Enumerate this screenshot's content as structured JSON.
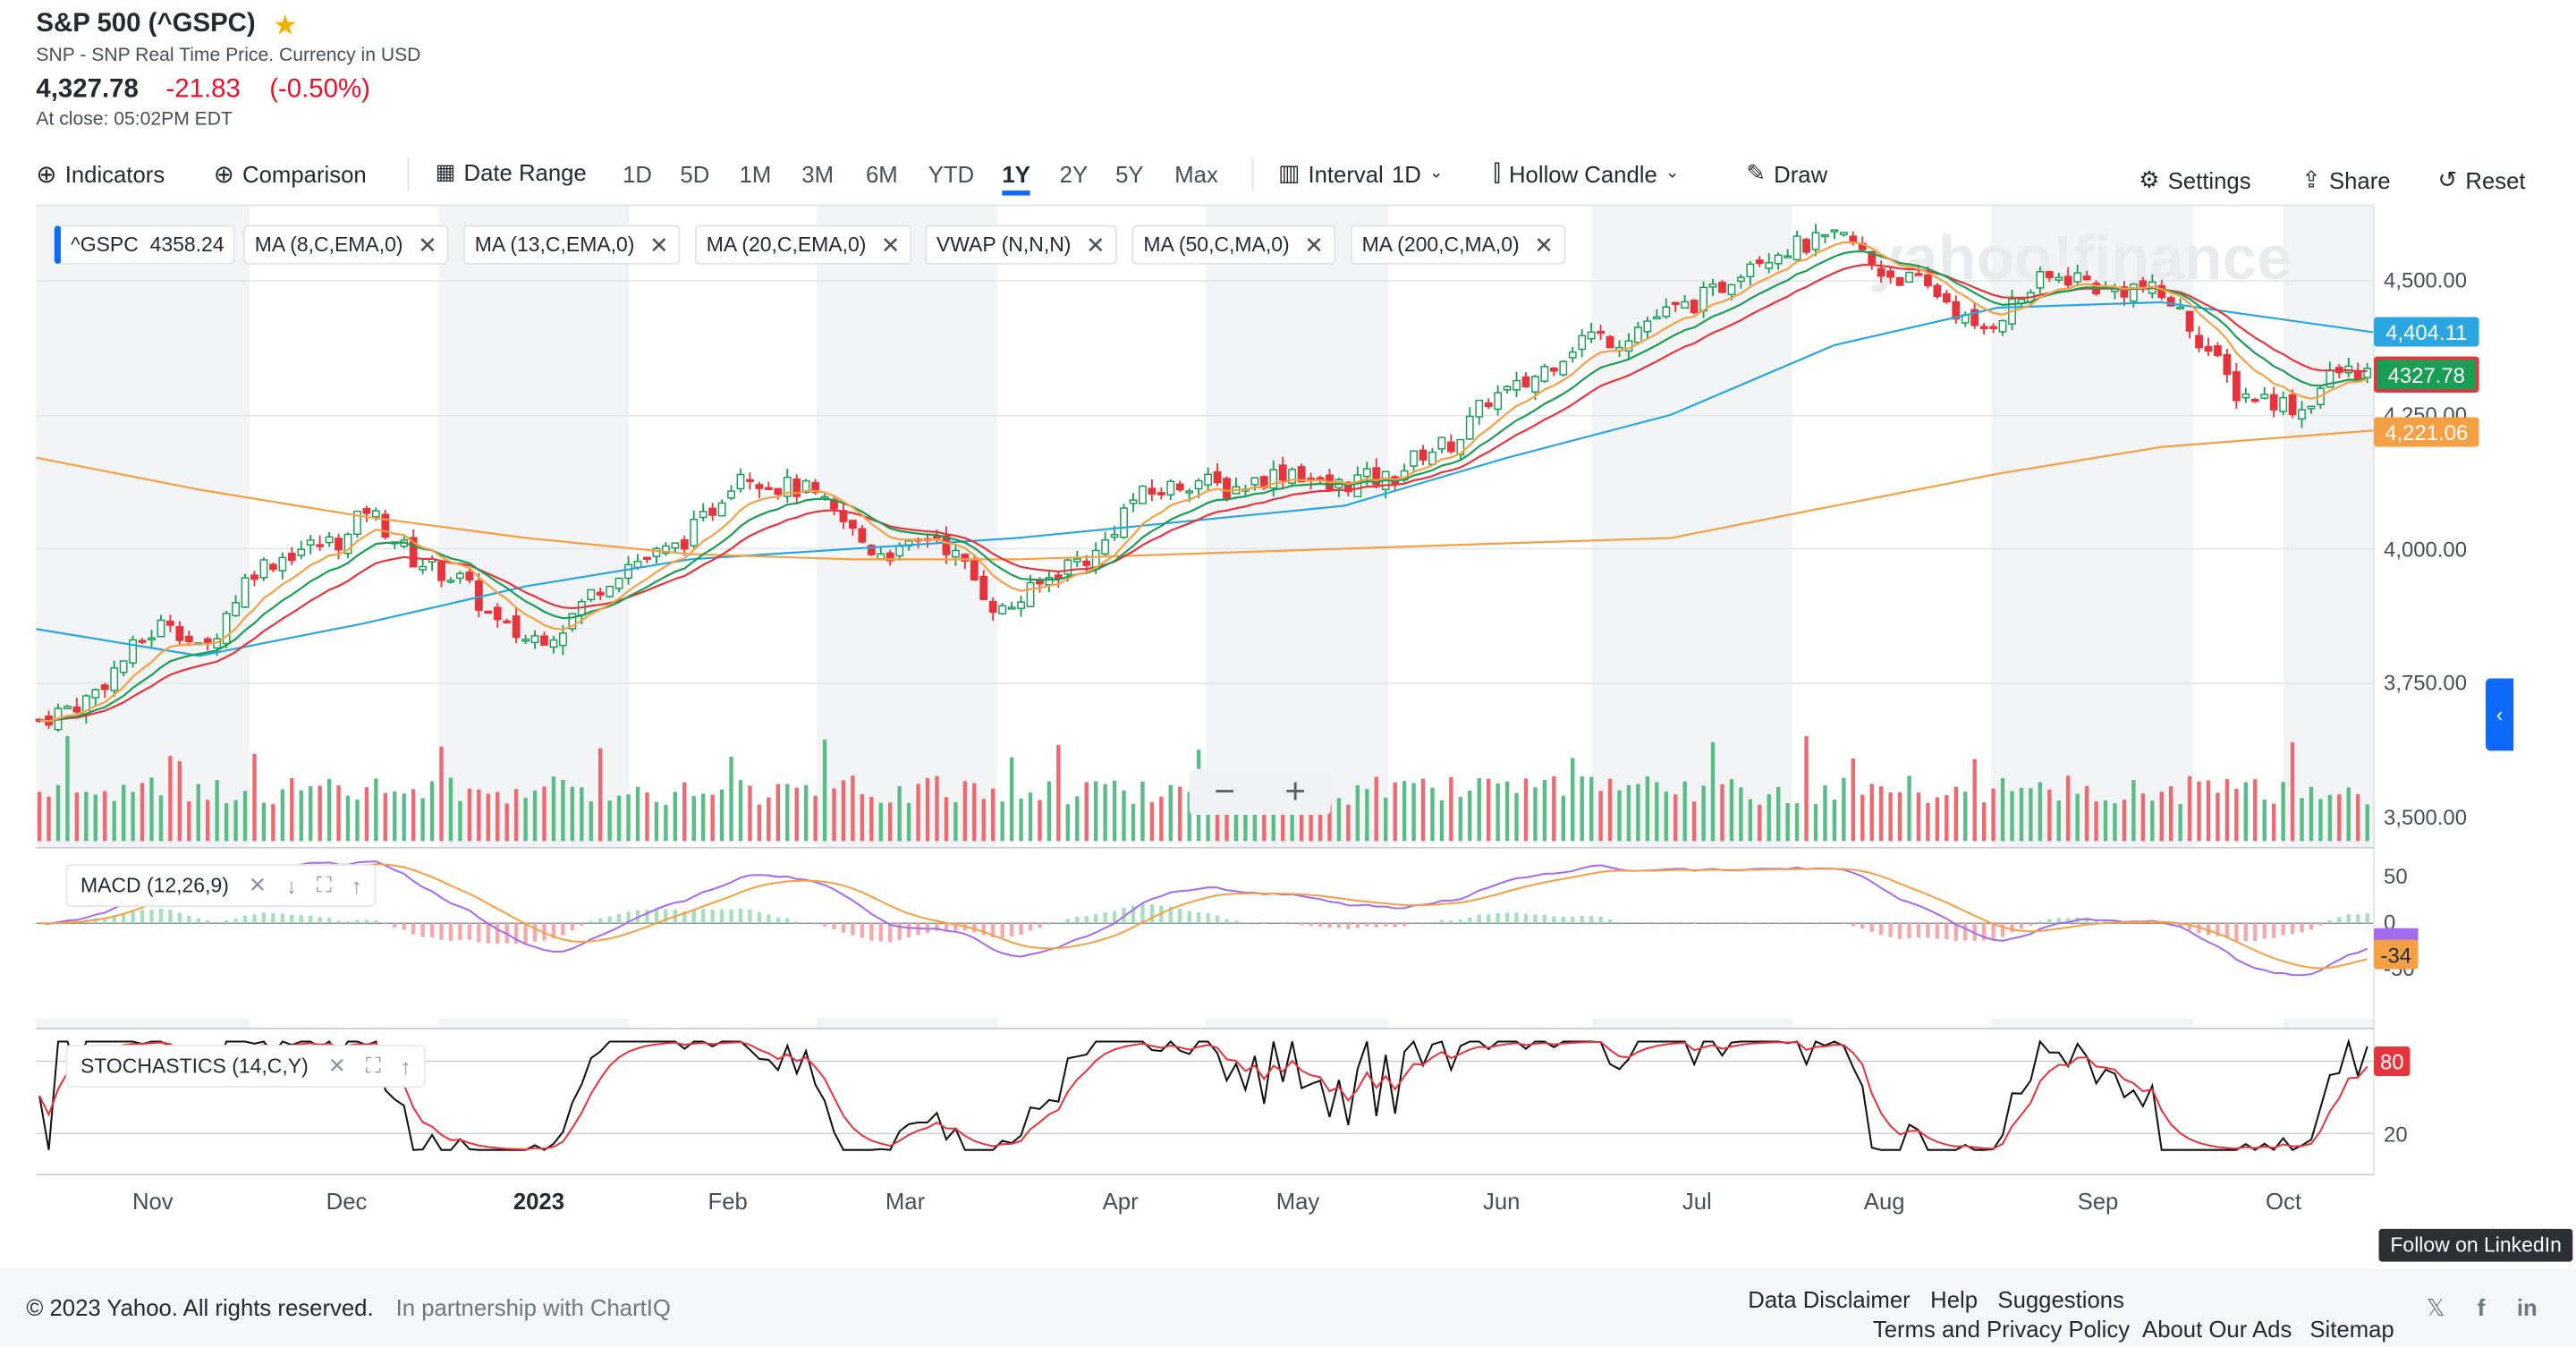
{
  "header": {
    "title": "S&P 500 (^GSPC)",
    "subtitle": "SNP - SNP Real Time Price. Currency in USD",
    "price": "4,327.78",
    "change": "-21.83",
    "change_pct": "(-0.50%)",
    "close_time": "At close: 05:02PM EDT"
  },
  "toolbar": {
    "indicators": "Indicators",
    "comparison": "Comparison",
    "date_range": "Date Range",
    "ranges": [
      "1D",
      "5D",
      "1M",
      "3M",
      "6M",
      "YTD",
      "1Y",
      "2Y",
      "5Y",
      "Max"
    ],
    "active_range": "1Y",
    "interval_label": "Interval",
    "interval_value": "1D",
    "chart_type": "Hollow Candle",
    "draw": "Draw",
    "settings": "Settings",
    "share": "Share",
    "reset": "Reset"
  },
  "legend": {
    "symbol": "^GSPC",
    "symbol_value": "4358.24",
    "studies": [
      "MA (8,C,EMA,0)",
      "MA (13,C,EMA,0)",
      "MA (20,C,EMA,0)",
      "VWAP (N,N,N)",
      "MA (50,C,MA,0)",
      "MA (200,C,MA,0)"
    ]
  },
  "watermark": "yahoo!finance",
  "price_tags": {
    "ma50": "4,404.11",
    "last": "4327.78",
    "ma200": "4,221.06"
  },
  "colors": {
    "up": "#1a9e55",
    "down": "#e5343c",
    "ma50": "#2aa6e0",
    "ma200": "#f5a044",
    "ema8": "#f5a044",
    "ema13": "#1a9e55",
    "ema20": "#e5343c",
    "accent": "#0f69ff"
  },
  "macd_panel": {
    "label": "MACD (12,26,9)",
    "ticks": [
      "50",
      "0",
      "-50"
    ],
    "value_tag": "-34"
  },
  "stoch_panel": {
    "label": "STOCHASTICS (14,C,Y)",
    "ticks": [
      "20"
    ],
    "value_tag": "80"
  },
  "zoom": {
    "minus": "−",
    "plus": "+"
  },
  "chart_data": {
    "type": "line",
    "title": "S&P 500 (^GSPC)",
    "y_ticks": [
      "4,500.00",
      "4,250.00",
      "4,000.00",
      "3,750.00",
      "3,500.00"
    ],
    "ylim": [
      3450,
      4600
    ],
    "x_ticks": [
      "Nov",
      "Dec",
      "2023",
      "Feb",
      "Mar",
      "Apr",
      "May",
      "Jun",
      "Jul",
      "Aug",
      "Sep",
      "Oct"
    ],
    "x_tick_positions": [
      0.06,
      0.2,
      0.32,
      0.44,
      0.55,
      0.68,
      0.79,
      0.91,
      1.03,
      1.14,
      1.27,
      1.39
    ],
    "series": [
      {
        "name": "^GSPC",
        "x": [
          0,
          0.03,
          0.06,
          0.08,
          0.1,
          0.13,
          0.16,
          0.19,
          0.2,
          0.23,
          0.26,
          0.28,
          0.3,
          0.32,
          0.34,
          0.36,
          0.39,
          0.41,
          0.43,
          0.45,
          0.47,
          0.49,
          0.51,
          0.53,
          0.55,
          0.57,
          0.59,
          0.61,
          0.63,
          0.65,
          0.67,
          0.69,
          0.71,
          0.73,
          0.75,
          0.77,
          0.79,
          0.81,
          0.83,
          0.85,
          0.87,
          0.89,
          0.91,
          0.93,
          0.95,
          0.97,
          0.99,
          1.01,
          1.03,
          1.05,
          1.07,
          1.09,
          1.11,
          1.13,
          1.15,
          1.17,
          1.19,
          1.21,
          1.23,
          1.25,
          1.27,
          1.29,
          1.31,
          1.33,
          1.35,
          1.37,
          1.39,
          1.41,
          1.43
        ],
        "values": [
          3680,
          3720,
          3820,
          3870,
          3800,
          3960,
          4000,
          4020,
          4080,
          3980,
          3940,
          3860,
          3830,
          3850,
          3920,
          3970,
          4000,
          4060,
          4150,
          4120,
          4110,
          4060,
          4000,
          3990,
          4030,
          3960,
          3880,
          3920,
          3970,
          3990,
          4090,
          4110,
          4130,
          4110,
          4130,
          4150,
          4110,
          4130,
          4130,
          4180,
          4200,
          4280,
          4300,
          4350,
          4400,
          4390,
          4430,
          4450,
          4480,
          4540,
          4560,
          4570,
          4580,
          4520,
          4500,
          4470,
          4400,
          4450,
          4500,
          4510,
          4480,
          4490,
          4460,
          4380,
          4290,
          4280,
          4260,
          4330,
          4328
        ]
      },
      {
        "name": "MA (50,C,MA,0)",
        "x": [
          0,
          0.1,
          0.2,
          0.3,
          0.4,
          0.5,
          0.6,
          0.7,
          0.8,
          0.9,
          1.0,
          1.1,
          1.2,
          1.3,
          1.43
        ],
        "values": [
          3850,
          3800,
          3860,
          3930,
          3980,
          4000,
          4020,
          4050,
          4080,
          4170,
          4250,
          4380,
          4450,
          4460,
          4404
        ]
      },
      {
        "name": "MA (200,C,MA,0)",
        "x": [
          0,
          0.1,
          0.2,
          0.3,
          0.4,
          0.5,
          0.6,
          0.7,
          0.8,
          0.9,
          1.0,
          1.1,
          1.2,
          1.3,
          1.43
        ],
        "values": [
          4170,
          4110,
          4060,
          4020,
          3990,
          3980,
          3980,
          3990,
          4000,
          4010,
          4020,
          4080,
          4140,
          4190,
          4221
        ]
      }
    ]
  },
  "footer": {
    "copyright": "© 2023 Yahoo. All rights reserved.",
    "partnership": "In partnership with ChartIQ",
    "links_row1": [
      "Data Disclaimer",
      "Help",
      "Suggestions"
    ],
    "links_row2": [
      "Terms and Privacy Policy",
      "About Our Ads",
      "Sitemap"
    ],
    "tooltip": "Follow on LinkedIn",
    "social": [
      "𝕏",
      "f",
      "in"
    ]
  }
}
